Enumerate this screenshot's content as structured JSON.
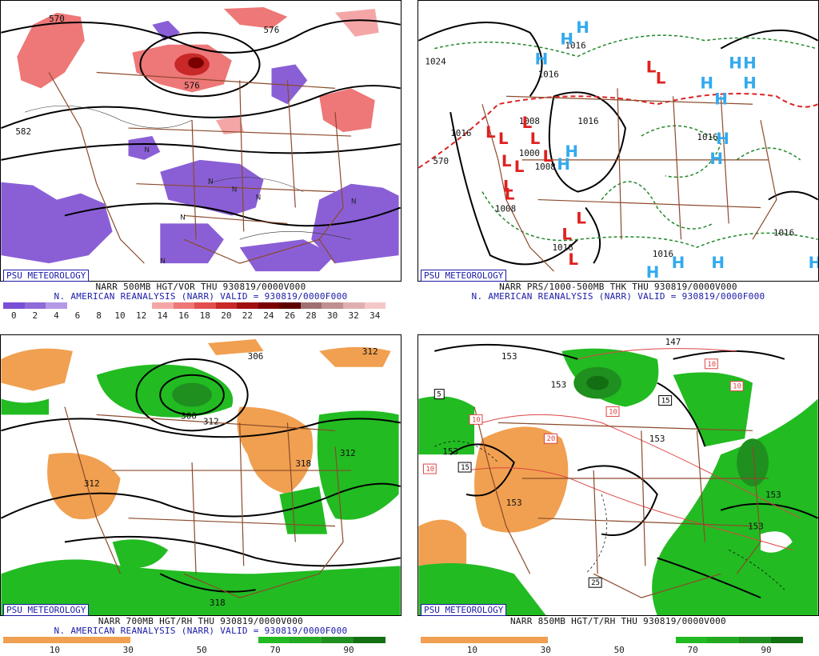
{
  "panels": [
    {
      "badge": "PSU METEOROLOGY",
      "line1": "NARR 500MB HGT/VOR THU 930819/0000V000",
      "line2": "N. AMERICAN REANALYSIS (NARR) VALID = 930819/0000F000",
      "colorbar": {
        "colors": [
          "#7a4fd6",
          "#8f6ad9",
          "#b49ae6",
          "#ffffff",
          "#ffffff",
          "#ffffff",
          "#ffffff",
          "#f4a6a6",
          "#ee7777",
          "#e24e4e",
          "#c82828",
          "#a01010",
          "#7a0000",
          "#5c0000",
          "#a07070",
          "#c09090",
          "#e0b0b0",
          "#f4c8c8"
        ],
        "ticks": [
          "0",
          "2",
          "4",
          "6",
          "8",
          "10",
          "12",
          "14",
          "16",
          "18",
          "20",
          "22",
          "24",
          "26",
          "28",
          "30",
          "32",
          "34"
        ]
      },
      "map_labels": [
        "570",
        "576",
        "582",
        "576"
      ]
    },
    {
      "badge": "PSU METEOROLOGY",
      "line1": "NARR PRS/1000-500MB THK THU 930819/0000V000",
      "line2": "N. AMERICAN REANALYSIS (NARR) VALID = 930819/0000F000",
      "map_labels": [
        "1024",
        "1016",
        "1016",
        "1016",
        "1016",
        "1016",
        "1008",
        "1000",
        "1008",
        "1008",
        "1016",
        "1016",
        "1016",
        "570"
      ],
      "pressure_centers": {
        "high": "H",
        "low": "L"
      }
    },
    {
      "badge": "PSU METEOROLOGY",
      "line1": "NARR 700MB HGT/RH THU 930819/0000V000",
      "line2": "N. AMERICAN REANALYSIS (NARR) VALID = 930819/0000F000",
      "colorbar": {
        "colors": [
          "#f0a050",
          "#f0a050",
          "#f0a050",
          "#f0a050",
          "#ffffff",
          "#ffffff",
          "#ffffff",
          "#ffffff",
          "#22bb22",
          "#22aa22",
          "#1f8f1f",
          "#127012"
        ],
        "ticks": [
          "10",
          "30",
          "50",
          "70",
          "90"
        ]
      },
      "map_labels": [
        "306",
        "312",
        "306",
        "312",
        "312",
        "318",
        "312",
        "318"
      ]
    },
    {
      "badge": "PSU METEOROLOGY",
      "line1": "NARR 850MB HGT/T/RH THU 930819/0000V000",
      "line2": "",
      "colorbar": {
        "colors": [
          "#f0a050",
          "#f0a050",
          "#f0a050",
          "#f0a050",
          "#ffffff",
          "#ffffff",
          "#ffffff",
          "#ffffff",
          "#22bb22",
          "#22aa22",
          "#1f8f1f",
          "#127012"
        ],
        "ticks": [
          "10",
          "30",
          "50",
          "70",
          "90"
        ]
      },
      "map_labels": [
        "153",
        "147",
        "153",
        "153",
        "153",
        "153",
        "153",
        "153"
      ],
      "boxed_labels": [
        "10",
        "10",
        "10",
        "10",
        "20",
        "15",
        "15",
        "25",
        "5",
        "10"
      ]
    }
  ]
}
